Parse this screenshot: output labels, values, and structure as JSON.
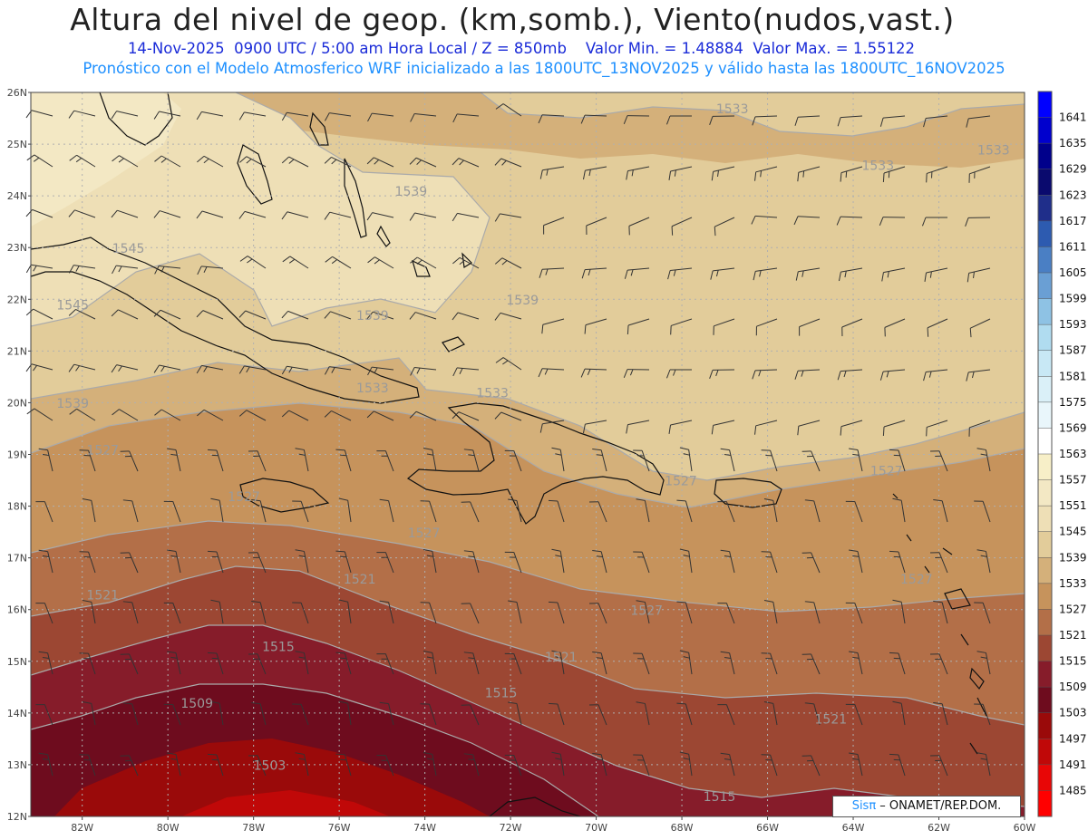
{
  "header": {
    "title": "Altura del nivel de geop. (km,somb.), Viento(nudos,vast.)",
    "date": "14-Nov-2025",
    "time_info": "0900 UTC / 5:00 am Hora Local / Z = 850mb",
    "min_value": "Valor Min. = 1.48884",
    "max_value": "Valor Max. = 1.55122",
    "forecast_info": "Pronóstico con el Modelo Atmosferico WRF inicializado a las 1800UTC_13NOV2025 y válido hasta las  1800UTC_16NOV2025"
  },
  "map": {
    "lat_labels": [
      "26N",
      "25N",
      "24N",
      "23N",
      "22N",
      "21N",
      "20N",
      "19N",
      "18N",
      "17N",
      "16N",
      "15N",
      "14N",
      "13N",
      "12N"
    ],
    "lon_labels": [
      "82W",
      "80W",
      "78W",
      "76W",
      "74W",
      "72W",
      "70W",
      "68W",
      "66W",
      "64W",
      "62W",
      "60W"
    ],
    "lat_range": [
      12,
      26
    ],
    "lon_range": [
      -83.2,
      -60
    ],
    "grid": "dotted",
    "contour_labels": [
      {
        "text": "1545",
        "lon": -81.3,
        "lat": 22.9
      },
      {
        "text": "1545",
        "lon": -82.6,
        "lat": 21.8
      },
      {
        "text": "1539",
        "lon": -74.7,
        "lat": 24.0
      },
      {
        "text": "1539",
        "lon": -72.1,
        "lat": 21.9
      },
      {
        "text": "1539",
        "lon": -75.6,
        "lat": 21.6
      },
      {
        "text": "1539",
        "lon": -82.6,
        "lat": 19.9
      },
      {
        "text": "1533",
        "lon": -67.2,
        "lat": 25.6
      },
      {
        "text": "1533",
        "lon": -63.8,
        "lat": 24.5
      },
      {
        "text": "1533",
        "lon": -61.1,
        "lat": 24.8
      },
      {
        "text": "1533",
        "lon": -75.6,
        "lat": 20.2
      },
      {
        "text": "1533",
        "lon": -72.8,
        "lat": 20.1
      },
      {
        "text": "1527",
        "lon": -81.9,
        "lat": 19.0
      },
      {
        "text": "1527",
        "lon": -78.6,
        "lat": 18.1
      },
      {
        "text": "1527",
        "lon": -74.4,
        "lat": 17.4
      },
      {
        "text": "1527",
        "lon": -68.4,
        "lat": 18.4
      },
      {
        "text": "1527",
        "lon": -63.6,
        "lat": 18.6
      },
      {
        "text": "1527",
        "lon": -62.9,
        "lat": 16.5
      },
      {
        "text": "1527",
        "lon": -69.2,
        "lat": 15.9
      },
      {
        "text": "1521",
        "lon": -81.9,
        "lat": 16.2
      },
      {
        "text": "1521",
        "lon": -75.9,
        "lat": 16.5
      },
      {
        "text": "1521",
        "lon": -71.2,
        "lat": 15.0
      },
      {
        "text": "1521",
        "lon": -64.9,
        "lat": 13.8
      },
      {
        "text": "1515",
        "lon": -77.8,
        "lat": 15.2
      },
      {
        "text": "1515",
        "lon": -72.6,
        "lat": 14.3
      },
      {
        "text": "1515",
        "lon": -67.5,
        "lat": 12.3
      },
      {
        "text": "1509",
        "lon": -79.7,
        "lat": 14.1
      },
      {
        "text": "1503",
        "lon": -78.0,
        "lat": 12.9
      }
    ]
  },
  "colorbar": {
    "labels": [
      "1641",
      "1635",
      "1629",
      "1623",
      "1617",
      "1611",
      "1605",
      "1599",
      "1593",
      "1587",
      "1581",
      "1575",
      "1569",
      "1563",
      "1557",
      "1551",
      "1545",
      "1539",
      "1533",
      "1527",
      "1521",
      "1515",
      "1509",
      "1503",
      "1497",
      "1491",
      "1485"
    ],
    "colors": [
      "#0000ff",
      "#0000cd",
      "#00008b",
      "#0a0a6e",
      "#1f2e8a",
      "#2d5bb0",
      "#4a7fc4",
      "#6a9fd4",
      "#8ec2e4",
      "#b0dcf0",
      "#c8e8f5",
      "#daf0f8",
      "#e9f6fb",
      "#ffffff",
      "#f7efc8",
      "#f3e8c4",
      "#eedfb6",
      "#e2cc9a",
      "#d4b07a",
      "#c6935c",
      "#b36f48",
      "#9c4733",
      "#861c2a",
      "#6e0c1e",
      "#9a0a0a",
      "#c00808",
      "#e80606",
      "#ff0000"
    ]
  },
  "credit": {
    "sis": "Sisπ",
    "org": " – ONAMET/REP.DOM."
  }
}
